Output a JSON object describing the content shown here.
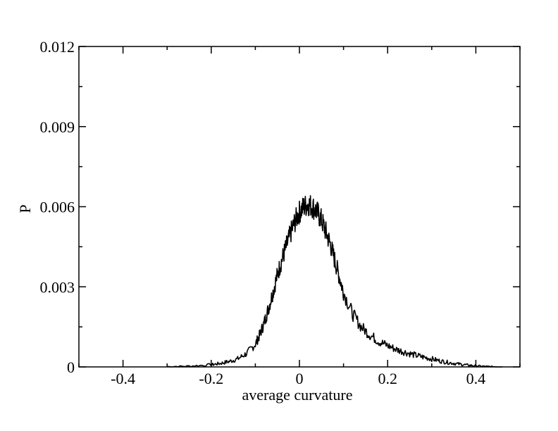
{
  "chart_data": {
    "type": "line",
    "title": "",
    "xlabel": "average curvature",
    "ylabel": "P",
    "xlim": [
      -0.5,
      0.5
    ],
    "ylim": [
      0,
      0.012
    ],
    "x_ticks": [
      -0.4,
      -0.2,
      0,
      0.2,
      0.4
    ],
    "x_tick_labels": [
      "-0.4",
      "-0.2",
      "0",
      "0.2",
      "0.4"
    ],
    "y_ticks": [
      0,
      0.003,
      0.006,
      0.009,
      0.012
    ],
    "y_tick_labels": [
      "0",
      "0.003",
      "0.006",
      "0.009",
      "0.012"
    ],
    "grid": false,
    "legend": "none",
    "line_color": "#000000",
    "series": [
      {
        "x": [
          -0.3,
          -0.25,
          -0.2,
          -0.18,
          -0.16,
          -0.14,
          -0.12,
          -0.1,
          -0.09,
          -0.08,
          -0.07,
          -0.06,
          -0.05,
          -0.04,
          -0.03,
          -0.02,
          -0.01,
          0.0,
          0.01,
          0.02,
          0.03,
          0.04,
          0.05,
          0.06,
          0.07,
          0.08,
          0.09,
          0.1,
          0.12,
          0.14,
          0.16,
          0.18,
          0.2,
          0.22,
          0.24,
          0.26,
          0.28,
          0.3,
          0.32,
          0.34,
          0.36,
          0.38,
          0.4,
          0.42,
          0.44,
          0.46
        ],
        "y": [
          1e-05,
          3e-05,
          8e-05,
          0.00013,
          0.0002,
          0.0003,
          0.0005,
          0.00085,
          0.0012,
          0.00165,
          0.0022,
          0.0028,
          0.00345,
          0.004,
          0.0045,
          0.005,
          0.00545,
          0.0058,
          0.006,
          0.0061,
          0.006,
          0.0058,
          0.0055,
          0.00505,
          0.0046,
          0.004,
          0.0034,
          0.0028,
          0.002,
          0.0015,
          0.0012,
          0.00095,
          0.0008,
          0.00065,
          0.00055,
          0.00045,
          0.00037,
          0.0003,
          0.00022,
          0.00016,
          0.00011,
          7e-05,
          4e-05,
          2e-05,
          1e-05,
          0.0
        ]
      }
    ]
  }
}
